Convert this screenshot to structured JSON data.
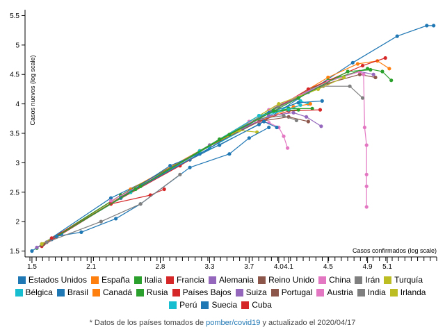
{
  "chart_data": {
    "type": "line",
    "xlabel": "Casos confirmados (log scale)",
    "ylabel": "Casos nuevos (log scale)",
    "x_scale": "log",
    "y_scale": "log",
    "xlim": [
      1.5,
      5.6
    ],
    "ylim": [
      1.4,
      5.6
    ],
    "x_ticks": [
      1.5,
      2.1,
      2.8,
      3.3,
      3.7,
      4.0,
      4.1,
      4.5,
      4.9,
      5.1
    ],
    "x_tick_labels": [
      "1.5",
      "2.1",
      "2.8",
      "3.3",
      "3.7",
      "4.0",
      "4.1",
      "4.5",
      "4.9",
      "5.1"
    ],
    "y_ticks": [
      1.5,
      2,
      2.5,
      3,
      3.5,
      4,
      4.5,
      5,
      5.5
    ],
    "y_tick_labels": [
      "1.5",
      "2",
      "2.5",
      "3",
      "3.5",
      "4",
      "4.5",
      "5",
      "5.5"
    ],
    "legend_position": "bottom",
    "series": [
      {
        "name": "Estados Unidos",
        "color": "#1f77b4",
        "points": [
          [
            1.5,
            1.5
          ],
          [
            2.3,
            2.4
          ],
          [
            3.1,
            3.05
          ],
          [
            3.8,
            3.65
          ],
          [
            4.3,
            4.2
          ],
          [
            4.75,
            4.7
          ],
          [
            5.2,
            5.15
          ],
          [
            5.5,
            5.33
          ],
          [
            5.57,
            5.33
          ]
        ]
      },
      {
        "name": "España",
        "color": "#ff7f0e",
        "points": [
          [
            1.6,
            1.6
          ],
          [
            2.5,
            2.55
          ],
          [
            3.3,
            3.3
          ],
          [
            4.0,
            3.95
          ],
          [
            4.5,
            4.45
          ],
          [
            4.8,
            4.68
          ],
          [
            5.0,
            4.73
          ],
          [
            5.12,
            4.6
          ]
        ]
      },
      {
        "name": "Italia",
        "color": "#2ca02c",
        "points": [
          [
            1.55,
            1.55
          ],
          [
            2.4,
            2.45
          ],
          [
            3.3,
            3.28
          ],
          [
            4.0,
            3.97
          ],
          [
            4.5,
            4.4
          ],
          [
            4.9,
            4.6
          ],
          [
            5.05,
            4.55
          ],
          [
            5.14,
            4.4
          ]
        ]
      },
      {
        "name": "Francia",
        "color": "#d62728",
        "points": [
          [
            1.6,
            1.58
          ],
          [
            2.3,
            2.3
          ],
          [
            3.0,
            2.95
          ],
          [
            3.7,
            3.65
          ],
          [
            4.3,
            4.25
          ],
          [
            4.85,
            4.65
          ],
          [
            5.08,
            4.78
          ]
        ]
      },
      {
        "name": "Alemania",
        "color": "#9467bd",
        "points": [
          [
            1.55,
            1.56
          ],
          [
            2.4,
            2.4
          ],
          [
            3.3,
            3.28
          ],
          [
            4.0,
            3.95
          ],
          [
            4.5,
            4.38
          ],
          [
            4.82,
            4.55
          ],
          [
            4.96,
            4.5
          ]
        ]
      },
      {
        "name": "Reino Unido",
        "color": "#8c564b",
        "points": [
          [
            1.62,
            1.62
          ],
          [
            2.5,
            2.52
          ],
          [
            3.3,
            3.3
          ],
          [
            4.0,
            3.95
          ],
          [
            4.5,
            4.35
          ],
          [
            4.82,
            4.5
          ],
          [
            4.98,
            4.45
          ]
        ]
      },
      {
        "name": "China",
        "color": "#e377c2",
        "points": [
          [
            2.3,
            2.35
          ],
          [
            3.1,
            3.08
          ],
          [
            3.9,
            3.9
          ],
          [
            4.5,
            4.38
          ],
          [
            4.82,
            4.55
          ],
          [
            4.86,
            4.5
          ],
          [
            4.87,
            3.6
          ],
          [
            4.89,
            3.3
          ],
          [
            4.89,
            2.8
          ],
          [
            4.89,
            2.6
          ],
          [
            4.89,
            2.25
          ]
        ]
      },
      {
        "name": "Irán",
        "color": "#7f7f7f",
        "points": [
          [
            1.8,
            1.8
          ],
          [
            2.6,
            2.6
          ],
          [
            3.4,
            3.4
          ],
          [
            4.0,
            3.95
          ],
          [
            4.45,
            4.3
          ],
          [
            4.72,
            4.3
          ],
          [
            4.85,
            4.1
          ]
        ]
      },
      {
        "name": "Turquía",
        "color": "#bcbd22",
        "points": [
          [
            1.7,
            1.7
          ],
          [
            2.5,
            2.5
          ],
          [
            3.3,
            3.3
          ],
          [
            4.0,
            4.0
          ],
          [
            4.4,
            4.25
          ],
          [
            4.66,
            4.45
          ]
        ]
      },
      {
        "name": "Bélgica",
        "color": "#17becf",
        "points": [
          [
            1.7,
            1.7
          ],
          [
            2.5,
            2.5
          ],
          [
            3.3,
            3.25
          ],
          [
            3.9,
            3.8
          ],
          [
            4.22,
            4.05
          ],
          [
            4.3,
            4.0
          ]
        ]
      },
      {
        "name": "Brasil",
        "color": "#1f77b4",
        "points": [
          [
            1.8,
            1.8
          ],
          [
            2.5,
            2.5
          ],
          [
            3.2,
            3.15
          ],
          [
            3.9,
            3.85
          ],
          [
            4.2,
            4.02
          ],
          [
            4.44,
            4.05
          ]
        ]
      },
      {
        "name": "Canadá",
        "color": "#ff7f0e",
        "points": [
          [
            1.6,
            1.62
          ],
          [
            2.4,
            2.4
          ],
          [
            3.2,
            3.2
          ],
          [
            3.8,
            3.7
          ],
          [
            4.15,
            3.95
          ],
          [
            4.32,
            4.0
          ]
        ]
      },
      {
        "name": "Rusia",
        "color": "#2ca02c",
        "points": [
          [
            1.7,
            1.7
          ],
          [
            2.5,
            2.5
          ],
          [
            3.2,
            3.2
          ],
          [
            3.8,
            3.8
          ],
          [
            4.1,
            3.92
          ],
          [
            4.34,
            3.92
          ]
        ]
      },
      {
        "name": "Países Bajos",
        "color": "#d62728",
        "points": [
          [
            1.65,
            1.65
          ],
          [
            2.5,
            2.5
          ],
          [
            3.2,
            3.2
          ],
          [
            3.8,
            3.7
          ],
          [
            4.1,
            3.88
          ],
          [
            4.42,
            3.9
          ]
        ]
      },
      {
        "name": "Suiza",
        "color": "#9467bd",
        "points": [
          [
            1.7,
            1.7
          ],
          [
            2.5,
            2.5
          ],
          [
            3.3,
            3.3
          ],
          [
            3.9,
            3.8
          ],
          [
            4.15,
            3.85
          ],
          [
            4.28,
            3.78
          ],
          [
            4.43,
            3.62
          ]
        ]
      },
      {
        "name": "Portugal",
        "color": "#8c564b",
        "points": [
          [
            1.6,
            1.6
          ],
          [
            2.4,
            2.4
          ],
          [
            3.2,
            3.2
          ],
          [
            3.8,
            3.7
          ],
          [
            4.1,
            3.78
          ],
          [
            4.3,
            3.7
          ]
        ]
      },
      {
        "name": "Austria",
        "color": "#e377c2",
        "points": [
          [
            1.7,
            1.7
          ],
          [
            2.5,
            2.5
          ],
          [
            3.2,
            3.2
          ],
          [
            3.7,
            3.7
          ],
          [
            3.9,
            3.68
          ],
          [
            4.0,
            3.6
          ],
          [
            4.05,
            3.45
          ],
          [
            4.09,
            3.25
          ]
        ]
      },
      {
        "name": "India",
        "color": "#7f7f7f",
        "points": [
          [
            1.6,
            1.62
          ],
          [
            2.5,
            2.5
          ],
          [
            3.2,
            3.2
          ],
          [
            3.8,
            3.75
          ],
          [
            4.05,
            3.8
          ],
          [
            4.18,
            3.72
          ]
        ]
      },
      {
        "name": "Irlanda",
        "color": "#bcbd22",
        "points": [
          [
            1.6,
            1.62
          ],
          [
            2.5,
            2.5
          ],
          [
            3.2,
            3.2
          ],
          [
            3.6,
            3.55
          ],
          [
            3.78,
            3.52
          ]
        ]
      },
      {
        "name": "Perú",
        "color": "#17becf",
        "points": [
          [
            1.7,
            1.7
          ],
          [
            2.5,
            2.5
          ],
          [
            3.2,
            3.2
          ],
          [
            3.8,
            3.8
          ],
          [
            4.1,
            3.9
          ],
          [
            4.22,
            3.98
          ]
        ]
      },
      {
        "name": "Suecia",
        "color": "#1f77b4",
        "points": [
          [
            1.7,
            1.7
          ],
          [
            2.4,
            2.4
          ],
          [
            2.9,
            2.95
          ],
          [
            3.4,
            3.3
          ],
          [
            3.85,
            3.7
          ],
          [
            3.98,
            3.6
          ]
        ]
      },
      {
        "name": "Cuba",
        "color": "#d62728",
        "points": [
          [
            1.7,
            1.72
          ],
          [
            2.3,
            2.3
          ],
          [
            2.7,
            2.45
          ],
          [
            2.84,
            2.55
          ]
        ]
      },
      {
        "name": "",
        "color": "#2ca02c",
        "points": [
          [
            1.75,
            1.75
          ],
          [
            2.6,
            2.6
          ],
          [
            3.5,
            3.48
          ],
          [
            4.2,
            4.1
          ],
          [
            4.7,
            4.55
          ],
          [
            4.93,
            4.58
          ]
        ]
      },
      {
        "name": "",
        "color": "#2ca02c",
        "points": [
          [
            1.75,
            1.75
          ],
          [
            2.55,
            2.55
          ],
          [
            3.4,
            3.4
          ],
          [
            3.95,
            3.88
          ],
          [
            4.2,
            3.9
          ]
        ]
      },
      {
        "name": "",
        "color": "#1f77b4",
        "points": [
          [
            1.75,
            1.75
          ],
          [
            2.0,
            1.82
          ],
          [
            2.35,
            2.05
          ],
          [
            2.6,
            2.3
          ],
          [
            3.1,
            2.92
          ],
          [
            3.5,
            3.15
          ],
          [
            3.7,
            3.42
          ],
          [
            3.9,
            3.6
          ]
        ]
      },
      {
        "name": "",
        "color": "#7f7f7f",
        "points": [
          [
            1.65,
            1.65
          ],
          [
            2.2,
            2.0
          ],
          [
            2.6,
            2.3
          ],
          [
            3.0,
            2.8
          ]
        ]
      }
    ]
  },
  "footnote": {
    "prefix": "* Datos de los países tomados de ",
    "link_text": "pomber/covid19",
    "suffix": " y actualizado el 2020/04/17"
  }
}
